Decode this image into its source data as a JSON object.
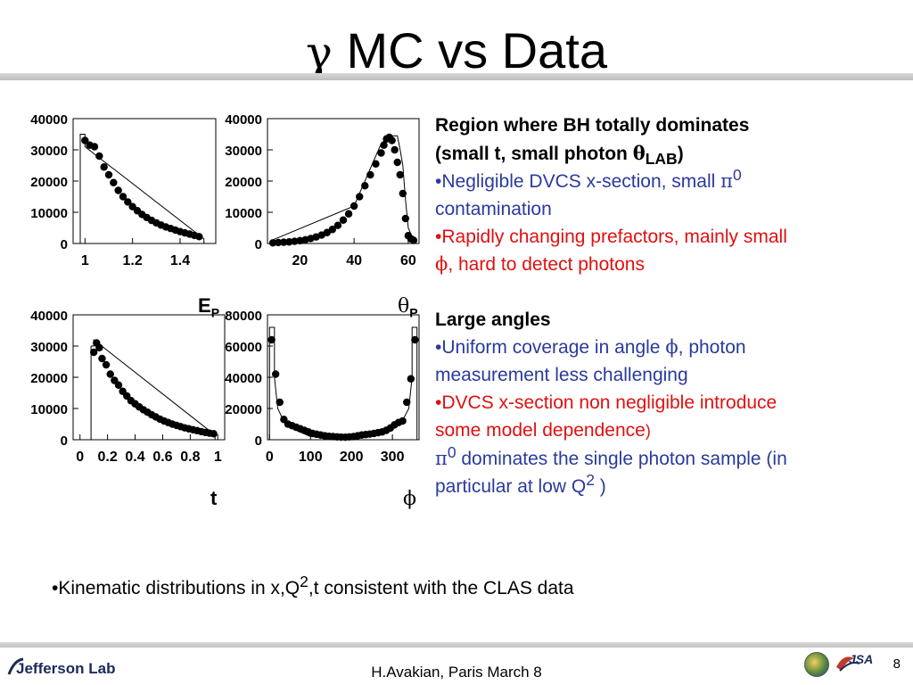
{
  "slide": {
    "title_symbol": "γ",
    "title_text": "MC vs Data",
    "page_number": "8",
    "footer": "H.Avakian, Paris March 8",
    "logo_text": "Jefferson Lab",
    "jsa_text": "JSA"
  },
  "bottom_bullet": {
    "pre": "•Kinematic distributions in x,Q",
    "sup": "2",
    "post": ",t consistent with the CLAS data"
  },
  "panel": {
    "heading1_a": "Region where BH totally dominates",
    "heading1_b": "(small t, small photon ",
    "heading1_theta": "θ",
    "heading1_sub": "LAB",
    "heading1_close": ")",
    "b1_pre": "•Negligible DVCS x-section, small ",
    "b1_pi": "π",
    "b1_sup": "0",
    "b1_post": "contamination",
    "b2_a": "•Rapidly changing prefactors, mainly small",
    "b2_phi": "ϕ",
    "b2_b": ", hard to detect photons",
    "heading2": "Large angles",
    "b3_a": "•Uniform coverage in angle ",
    "b3_phi": "ϕ",
    "b3_b": ", photon",
    "b3_c": "measurement less challenging",
    "b4_a": "•DVCS x-section non negligible introduce",
    "b4_b": "some model dependence",
    "b4_paren": ")",
    "b5_box": "",
    "b5_pi": "π",
    "b5_sup": "0",
    "b5_a": " dominates the single photon sample (in",
    "b5_b": "particular at low Q",
    "b5_sup2": "2",
    "b5_c": " )"
  },
  "colors": {
    "blue_text": "#2a3a9c",
    "red_text": "#e01010",
    "markers": "#000000"
  },
  "chart_data": [
    {
      "type": "scatter",
      "xlabel": "E",
      "xlabel_sub": "P",
      "xlim": [
        0.95,
        1.55
      ],
      "ylim": [
        0,
        40000
      ],
      "xticks": [
        1,
        1.2,
        1.4
      ],
      "xtick_labels": [
        "1",
        "1.2",
        "1.4"
      ],
      "yticks": [
        0,
        10000,
        20000,
        30000,
        40000
      ],
      "ytick_labels": [
        "0",
        "10000",
        "20000",
        "30000",
        "40000"
      ],
      "hist": [
        [
          0.95,
          0
        ],
        [
          0.98,
          0
        ],
        [
          0.98,
          35000
        ],
        [
          1.0,
          35000
        ],
        [
          1.0,
          31000
        ],
        [
          1.5,
          1500
        ],
        [
          1.5,
          0
        ]
      ],
      "series": [
        {
          "x": [
            1.0,
            1.02,
            1.04,
            1.06,
            1.08,
            1.1,
            1.12,
            1.14,
            1.16,
            1.18,
            1.2,
            1.22,
            1.24,
            1.26,
            1.28,
            1.3,
            1.32,
            1.34,
            1.36,
            1.38,
            1.4,
            1.42,
            1.44,
            1.46,
            1.48
          ],
          "y": [
            33000,
            31500,
            31000,
            28000,
            24500,
            22000,
            19500,
            17000,
            15000,
            13300,
            11800,
            10500,
            9300,
            8300,
            7400,
            6600,
            5900,
            5300,
            4800,
            4300,
            3800,
            3400,
            3000,
            2600,
            2200
          ]
        }
      ]
    },
    {
      "type": "scatter",
      "xlabel": "θ",
      "xlabel_sub": "P",
      "xlim": [
        8,
        64
      ],
      "ylim": [
        0,
        40000
      ],
      "xticks": [
        20,
        40,
        60
      ],
      "xtick_labels": [
        "20",
        "40",
        "60"
      ],
      "yticks": [
        0,
        10000,
        20000,
        30000,
        40000
      ],
      "ytick_labels": [
        "0",
        "10000",
        "20000",
        "30000",
        "40000"
      ],
      "hist": [
        [
          8,
          0
        ],
        [
          9,
          0
        ],
        [
          9,
          800
        ],
        [
          40,
          12000
        ],
        [
          50,
          32000
        ],
        [
          53,
          34500
        ],
        [
          56,
          34500
        ],
        [
          57,
          30000
        ],
        [
          58,
          25000
        ],
        [
          59,
          14000
        ],
        [
          60,
          5000
        ],
        [
          62,
          1000
        ],
        [
          62,
          0
        ]
      ],
      "series": [
        {
          "x": [
            10,
            12,
            14,
            16,
            18,
            20,
            22,
            24,
            26,
            28,
            30,
            32,
            34,
            36,
            38,
            40,
            42,
            44,
            46,
            48,
            50,
            51,
            52,
            53,
            54,
            55,
            56,
            57,
            58,
            59,
            60,
            61,
            62
          ],
          "y": [
            200,
            300,
            400,
            500,
            700,
            900,
            1200,
            1600,
            2100,
            2700,
            3500,
            4500,
            5800,
            7500,
            9500,
            12000,
            15000,
            18500,
            22000,
            25500,
            29000,
            31500,
            33500,
            34000,
            33000,
            30000,
            26000,
            22000,
            16000,
            8000,
            2500,
            1500,
            1000
          ]
        }
      ]
    },
    {
      "type": "scatter",
      "xlabel": "t",
      "xlim": [
        -0.05,
        1.05
      ],
      "ylim": [
        0,
        40000
      ],
      "xticks": [
        0,
        0.2,
        0.4,
        0.6,
        0.8,
        1
      ],
      "xtick_labels": [
        "0",
        "0.2",
        "0.4",
        "0.6",
        "0.8",
        "1"
      ],
      "yticks": [
        0,
        10000,
        20000,
        30000,
        40000
      ],
      "ytick_labels": [
        "0",
        "10000",
        "20000",
        "30000",
        "40000"
      ],
      "hist": [
        [
          0,
          0
        ],
        [
          0.08,
          0
        ],
        [
          0.08,
          30000
        ],
        [
          0.1,
          30000
        ],
        [
          0.1,
          32000
        ],
        [
          0.98,
          1500
        ],
        [
          0.98,
          0
        ]
      ],
      "series": [
        {
          "x": [
            0.1,
            0.12,
            0.14,
            0.16,
            0.19,
            0.22,
            0.25,
            0.28,
            0.31,
            0.34,
            0.37,
            0.4,
            0.43,
            0.46,
            0.49,
            0.52,
            0.55,
            0.58,
            0.61,
            0.64,
            0.67,
            0.7,
            0.73,
            0.76,
            0.79,
            0.82,
            0.85,
            0.88,
            0.91,
            0.94,
            0.97
          ],
          "y": [
            28000,
            31000,
            29500,
            26000,
            24000,
            21000,
            19000,
            17500,
            15500,
            14000,
            12500,
            11500,
            10500,
            9600,
            8800,
            8000,
            7300,
            6600,
            6000,
            5500,
            5000,
            4600,
            4200,
            3800,
            3500,
            3200,
            2900,
            2600,
            2300,
            2100,
            1900
          ]
        }
      ]
    },
    {
      "type": "scatter",
      "xlabel": "ϕ",
      "xlim": [
        -5,
        365
      ],
      "ylim": [
        0,
        80000
      ],
      "xticks": [
        0,
        100,
        200,
        300
      ],
      "xtick_labels": [
        "0",
        "100",
        "200",
        "300"
      ],
      "yticks": [
        0,
        20000,
        40000,
        60000,
        80000
      ],
      "ytick_labels": [
        "0",
        "20000",
        "40000",
        "60000",
        "80000"
      ],
      "hist": [
        [
          0,
          0
        ],
        [
          0,
          72000
        ],
        [
          12,
          72000
        ],
        [
          12,
          40000
        ],
        [
          20,
          20000
        ],
        [
          40,
          9000
        ],
        [
          100,
          2000
        ],
        [
          180,
          1000
        ],
        [
          260,
          3000
        ],
        [
          320,
          10000
        ],
        [
          340,
          20000
        ],
        [
          348,
          40000
        ],
        [
          348,
          72000
        ],
        [
          360,
          72000
        ],
        [
          360,
          0
        ]
      ],
      "series": [
        {
          "x": [
            5,
            15,
            25,
            35,
            45,
            55,
            65,
            75,
            85,
            95,
            105,
            115,
            125,
            135,
            145,
            155,
            165,
            175,
            185,
            195,
            205,
            215,
            225,
            235,
            245,
            255,
            265,
            275,
            285,
            295,
            305,
            315,
            325,
            335,
            345,
            355
          ],
          "y": [
            64000,
            42000,
            24000,
            13000,
            10000,
            9000,
            8000,
            7000,
            6000,
            5000,
            4000,
            3500,
            3000,
            2500,
            2200,
            2000,
            1800,
            1700,
            1600,
            1800,
            2000,
            2500,
            3000,
            3300,
            3600,
            4000,
            4500,
            5000,
            6000,
            7500,
            9500,
            11000,
            12000,
            24000,
            39000,
            64000
          ]
        }
      ]
    }
  ]
}
